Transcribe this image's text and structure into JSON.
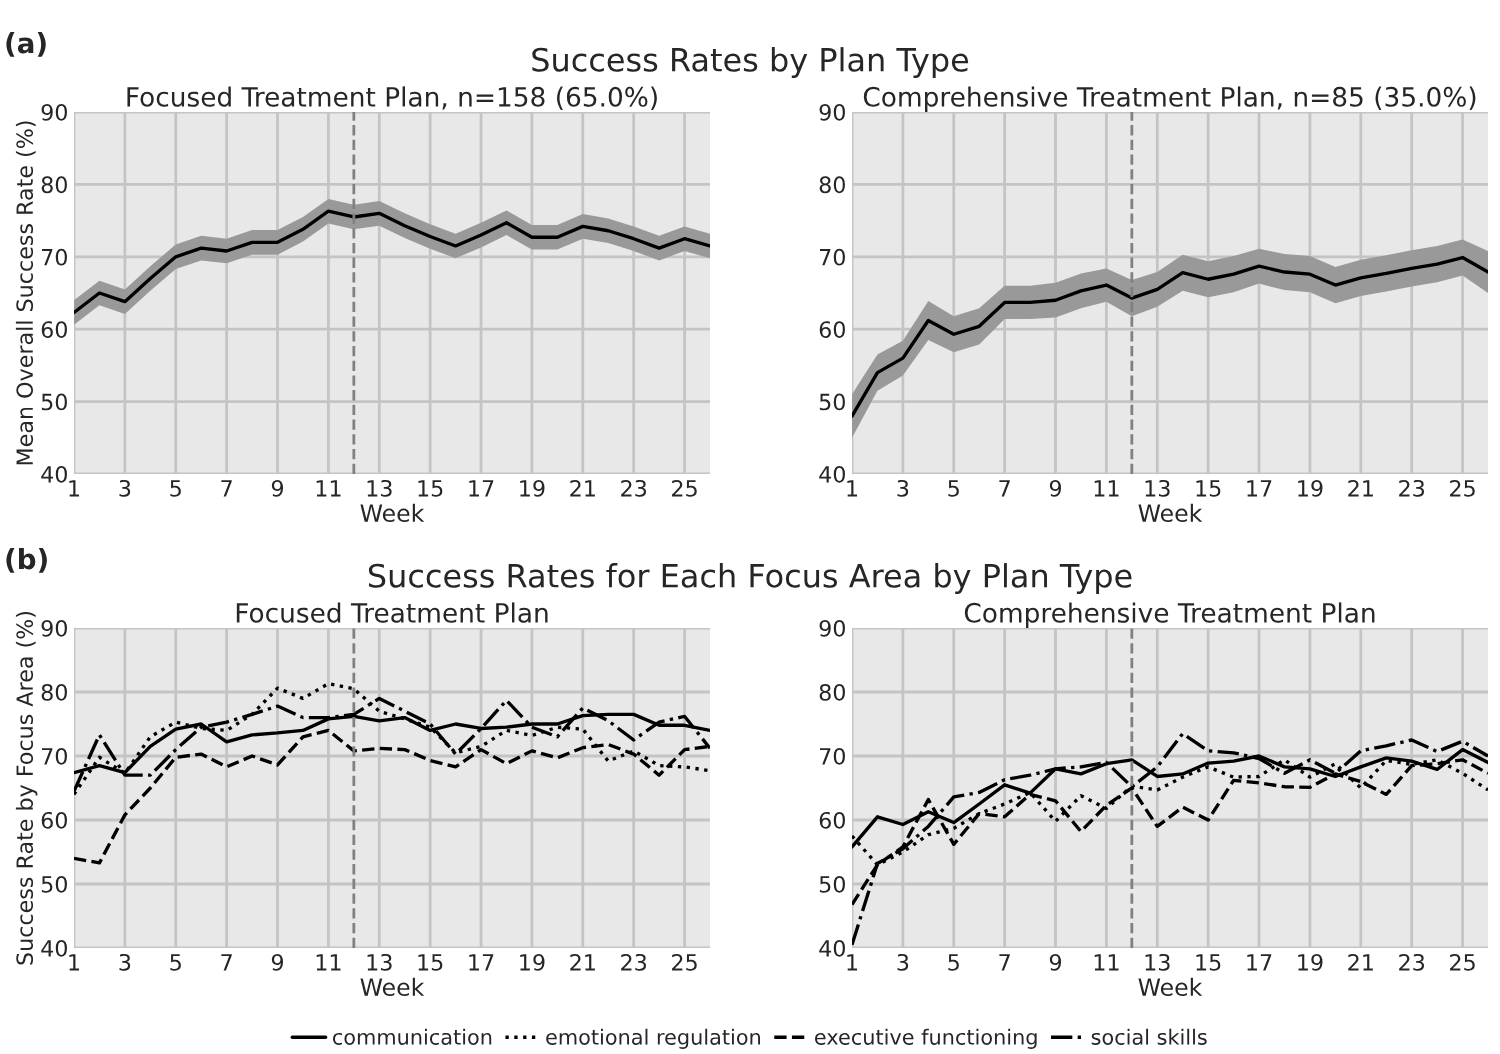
{
  "chart_data": [
    {
      "type": "line",
      "title": "Focused Treatment Plan, n=158 (65.0%)",
      "xlabel": "Week",
      "ylabel": "Mean Overall Success Rate (%)",
      "annotations": [
        "(a)",
        "Success Rates by Plan Type"
      ],
      "x": [
        1,
        2,
        3,
        4,
        5,
        6,
        7,
        8,
        9,
        10,
        11,
        12,
        13,
        14,
        15,
        16,
        17,
        18,
        19,
        20,
        21,
        22,
        23,
        24,
        25,
        26
      ],
      "series": [
        {
          "color": "#000000",
          "values": [
            62.3,
            65,
            63.8,
            67,
            70,
            71.2,
            70.8,
            72,
            72,
            73.8,
            76.3,
            75.5,
            76,
            74.3,
            72.8,
            71.5,
            73,
            74.7,
            72.7,
            72.7,
            74.2,
            73.6,
            72.5,
            71.2,
            72.5,
            71.5
          ],
          "lower": [
            60.6,
            63.3,
            62.1,
            65.3,
            68.3,
            69.5,
            69.1,
            70.3,
            70.3,
            72.1,
            74.6,
            73.8,
            74.3,
            72.6,
            71.1,
            69.8,
            71.3,
            73,
            71,
            71,
            72.5,
            71.9,
            70.8,
            69.5,
            70.8,
            69.8
          ],
          "upper": [
            64,
            66.7,
            65.5,
            68.7,
            71.7,
            72.9,
            72.5,
            73.7,
            73.7,
            75.5,
            78,
            77.2,
            77.7,
            76,
            74.5,
            73.2,
            74.7,
            76.4,
            74.4,
            74.4,
            75.9,
            75.3,
            74.2,
            72.9,
            74.2,
            73.2
          ]
        }
      ],
      "xlim": [
        1,
        26
      ],
      "xticks": [
        1,
        3,
        5,
        7,
        9,
        11,
        13,
        15,
        17,
        19,
        21,
        23,
        25
      ],
      "ylim": [
        40,
        90
      ],
      "yticks": [
        40,
        50,
        60,
        70,
        80,
        90
      ],
      "ref_lines": [
        {
          "axis": "x",
          "value": 12,
          "color": "#808080",
          "line_style": "dashed"
        }
      ],
      "grid": true,
      "legend": false
    },
    {
      "type": "line",
      "title": "Comprehensive Treatment Plan, n=85 (35.0%)",
      "xlabel": "Week",
      "x": [
        1,
        2,
        3,
        4,
        5,
        6,
        7,
        8,
        9,
        10,
        11,
        12,
        13,
        14,
        15,
        16,
        17,
        18,
        19,
        20,
        21,
        22,
        23,
        24,
        25,
        26
      ],
      "series": [
        {
          "color": "#000000",
          "values": [
            48,
            54,
            56,
            61.2,
            59.3,
            60.4,
            63.7,
            63.7,
            64,
            65.3,
            66.1,
            64.3,
            65.5,
            67.8,
            66.9,
            67.6,
            68.7,
            67.9,
            67.6,
            66.1,
            67.1,
            67.7,
            68.4,
            69,
            69.9,
            67.9
          ],
          "lower": [
            45,
            51.5,
            53.6,
            58.5,
            56.8,
            57.9,
            61.4,
            61.4,
            61.6,
            62.9,
            63.8,
            61.8,
            63.1,
            65.3,
            64.4,
            65.1,
            66.3,
            65.4,
            65.1,
            63.6,
            64.6,
            65.2,
            65.9,
            66.5,
            67.4,
            65
          ],
          "upper": [
            51,
            56.5,
            58.4,
            63.9,
            61.8,
            62.9,
            66,
            66,
            66.4,
            67.7,
            68.4,
            66.8,
            67.9,
            70.3,
            69.4,
            70.1,
            71.1,
            70.4,
            70.1,
            68.6,
            69.6,
            70.2,
            70.9,
            71.5,
            72.4,
            70.8
          ]
        }
      ],
      "xlim": [
        1,
        26
      ],
      "xticks": [
        1,
        3,
        5,
        7,
        9,
        11,
        13,
        15,
        17,
        19,
        21,
        23,
        25
      ],
      "ylim": [
        40,
        90
      ],
      "yticks": [
        40,
        50,
        60,
        70,
        80,
        90
      ],
      "ref_lines": [
        {
          "axis": "x",
          "value": 12,
          "color": "#808080",
          "line_style": "dashed"
        }
      ],
      "grid": true,
      "legend": false
    },
    {
      "type": "line",
      "title": "Focused Treatment Plan",
      "xlabel": "Week",
      "ylabel": "Success Rate by Focus Area (%)",
      "annotations": [
        "(b)",
        "Success Rates for Each Focus Area by Plan Type"
      ],
      "x": [
        1,
        2,
        3,
        4,
        5,
        6,
        7,
        8,
        9,
        10,
        11,
        12,
        13,
        14,
        15,
        16,
        17,
        18,
        19,
        20,
        21,
        22,
        23,
        24,
        25,
        26
      ],
      "series": [
        {
          "name": "communication",
          "color": "#000000",
          "line_style": "solid",
          "values": [
            67.4,
            68.5,
            67.4,
            71.5,
            74.2,
            75,
            72.2,
            73.3,
            73.6,
            74,
            75.8,
            76.2,
            75.5,
            76,
            74,
            75,
            74.3,
            74.5,
            75,
            75,
            76.3,
            76.5,
            76.5,
            74.8,
            74.8,
            74
          ]
        },
        {
          "name": "emotional regulation",
          "color": "#000000",
          "line_style": "dotted",
          "values": [
            64,
            69.8,
            67.3,
            73,
            75.3,
            74.3,
            74,
            76.5,
            80.6,
            79,
            81.3,
            80.5,
            77,
            75.8,
            74.5,
            70.5,
            71.5,
            74,
            73.2,
            74.5,
            74.2,
            69.2,
            70.8,
            68.5,
            68.3,
            67.7
          ]
        },
        {
          "name": "executive functioning",
          "color": "#000000",
          "line_style": "dashed",
          "values": [
            54,
            53.3,
            60.8,
            65,
            69.8,
            70.3,
            68.3,
            70,
            68.6,
            73,
            74,
            70.8,
            71.2,
            71,
            69.3,
            68.3,
            71,
            68.8,
            70.8,
            69.7,
            71.3,
            71.8,
            70.3,
            67,
            71,
            71.5
          ]
        },
        {
          "name": "social skills",
          "color": "#000000",
          "line_style": "dashdot",
          "values": [
            64.5,
            73.3,
            67,
            67,
            71,
            74.5,
            75.3,
            76.5,
            77.8,
            76,
            76,
            76.5,
            79,
            77,
            75,
            70.3,
            74.3,
            78.7,
            74.5,
            73,
            77.5,
            75.5,
            72.5,
            75.3,
            76.2,
            71.2
          ]
        }
      ],
      "xlim": [
        1,
        26
      ],
      "xticks": [
        1,
        3,
        5,
        7,
        9,
        11,
        13,
        15,
        17,
        19,
        21,
        23,
        25
      ],
      "ylim": [
        40,
        90
      ],
      "yticks": [
        40,
        50,
        60,
        70,
        80,
        90
      ],
      "ref_lines": [
        {
          "axis": "x",
          "value": 12,
          "color": "#808080",
          "line_style": "dashed"
        }
      ],
      "grid": true,
      "legend": "bottom"
    },
    {
      "type": "line",
      "title": "Comprehensive Treatment Plan",
      "xlabel": "Week",
      "x": [
        1,
        2,
        3,
        4,
        5,
        6,
        7,
        8,
        9,
        10,
        11,
        12,
        13,
        14,
        15,
        16,
        17,
        18,
        19,
        20,
        21,
        22,
        23,
        24,
        25,
        26
      ],
      "series": [
        {
          "color": "#000000",
          "line_style": "solid",
          "values": [
            55.8,
            60.5,
            59.3,
            61.3,
            59.6,
            62.5,
            65.5,
            64.2,
            68,
            67.2,
            68.8,
            69.4,
            66.8,
            67.2,
            68.9,
            69.2,
            70,
            68.3,
            68,
            66.8,
            68.3,
            69.7,
            69.2,
            67.9,
            71,
            69
          ]
        },
        {
          "color": "#000000",
          "line_style": "dotted",
          "values": [
            57.5,
            53,
            55,
            57.7,
            58.7,
            61,
            62.5,
            64.3,
            59.8,
            63.8,
            61.8,
            65.3,
            64.7,
            66.7,
            68.3,
            66.7,
            66.8,
            69.4,
            66.7,
            68.8,
            65,
            69.3,
            68.7,
            69.4,
            67.3,
            64.7
          ]
        },
        {
          "color": "#000000",
          "line_style": "dashed",
          "values": [
            46.8,
            53,
            55.8,
            63.2,
            56.2,
            61,
            60.5,
            64,
            63,
            58.2,
            62.3,
            65,
            59,
            62,
            60,
            66.2,
            65.8,
            65.2,
            65.1,
            67.2,
            66,
            64,
            68.5,
            68.8,
            69.4,
            67.3
          ]
        },
        {
          "color": "#000000",
          "line_style": "dashdot",
          "values": [
            40.5,
            53.2,
            55.5,
            59,
            63.6,
            64.3,
            66.3,
            67,
            68,
            68.3,
            69,
            65.2,
            68.3,
            73.5,
            70.8,
            70.5,
            69.6,
            67.3,
            69.4,
            67.3,
            70.8,
            71.6,
            72.5,
            70.7,
            72.3,
            70
          ]
        }
      ],
      "xlim": [
        1,
        26
      ],
      "xticks": [
        1,
        3,
        5,
        7,
        9,
        11,
        13,
        15,
        17,
        19,
        21,
        23,
        25
      ],
      "ylim": [
        40,
        90
      ],
      "yticks": [
        40,
        50,
        60,
        70,
        80,
        90
      ],
      "ref_lines": [
        {
          "axis": "x",
          "value": 12,
          "color": "#808080",
          "line_style": "dashed"
        }
      ],
      "grid": true,
      "legend": false
    }
  ]
}
